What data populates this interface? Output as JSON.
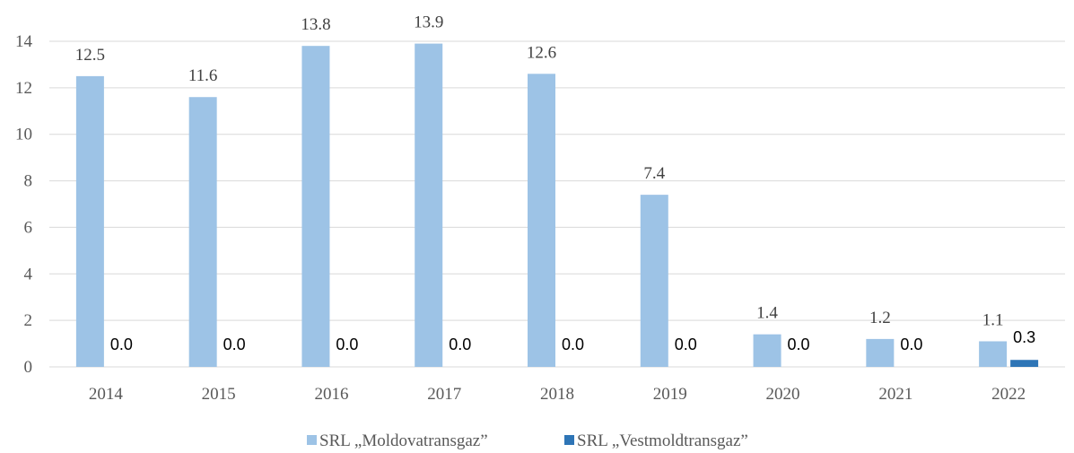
{
  "chart_data": {
    "type": "bar",
    "categories": [
      "2014",
      "2015",
      "2016",
      "2017",
      "2018",
      "2019",
      "2020",
      "2021",
      "2022"
    ],
    "series": [
      {
        "name": "SRL „Moldovatransgaz”",
        "color": "#9dc3e6",
        "values": [
          12.5,
          11.6,
          13.8,
          13.9,
          12.6,
          7.4,
          1.4,
          1.2,
          1.1
        ],
        "labels": [
          "12.5",
          "11.6",
          "13.8",
          "13.9",
          "12.6",
          "7.4",
          "1.4",
          "1.2",
          "1.1"
        ]
      },
      {
        "name": "SRL „Vestmoldtransgaz”",
        "color": "#2e75b6",
        "values": [
          0,
          0,
          0,
          0,
          0,
          0,
          0,
          0,
          0.3
        ],
        "labels": [
          "0.0",
          "0.0",
          "0.0",
          "0.0",
          "0.0",
          "0.0",
          "0.0",
          "0.0",
          "0.3"
        ]
      }
    ],
    "yticks": [
      "0",
      "2",
      "4",
      "6",
      "8",
      "10",
      "12",
      "14"
    ],
    "ylim": [
      0,
      14
    ],
    "grid": true,
    "legend": "bottom"
  }
}
